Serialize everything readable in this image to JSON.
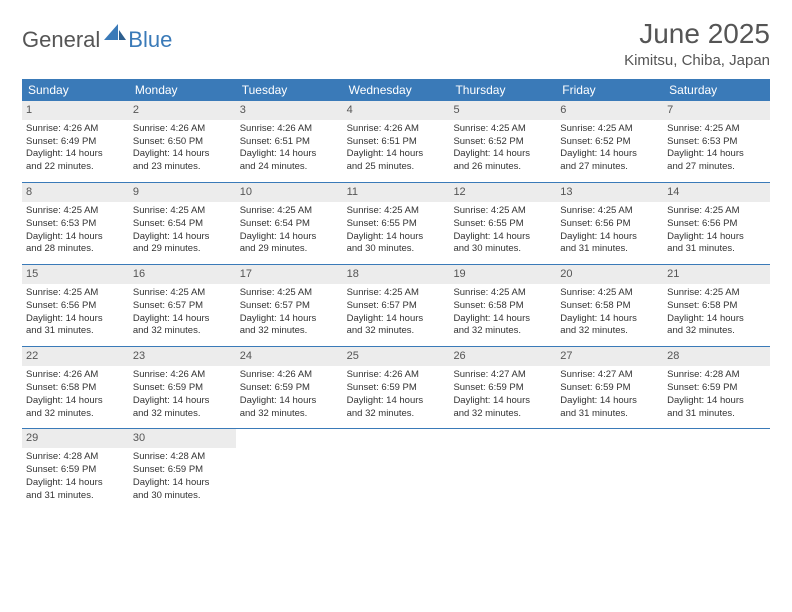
{
  "logo": {
    "general": "General",
    "blue": "Blue"
  },
  "title": "June 2025",
  "location": "Kimitsu, Chiba, Japan",
  "colors": {
    "header_bg": "#3a7ab8",
    "header_text": "#ffffff",
    "daynum_bg": "#ececec",
    "border": "#3a7ab8",
    "text": "#333333",
    "title_color": "#555555"
  },
  "weekdays": [
    "Sunday",
    "Monday",
    "Tuesday",
    "Wednesday",
    "Thursday",
    "Friday",
    "Saturday"
  ],
  "weeks": [
    [
      {
        "n": "1",
        "sunrise": "Sunrise: 4:26 AM",
        "sunset": "Sunset: 6:49 PM",
        "d1": "Daylight: 14 hours",
        "d2": "and 22 minutes."
      },
      {
        "n": "2",
        "sunrise": "Sunrise: 4:26 AM",
        "sunset": "Sunset: 6:50 PM",
        "d1": "Daylight: 14 hours",
        "d2": "and 23 minutes."
      },
      {
        "n": "3",
        "sunrise": "Sunrise: 4:26 AM",
        "sunset": "Sunset: 6:51 PM",
        "d1": "Daylight: 14 hours",
        "d2": "and 24 minutes."
      },
      {
        "n": "4",
        "sunrise": "Sunrise: 4:26 AM",
        "sunset": "Sunset: 6:51 PM",
        "d1": "Daylight: 14 hours",
        "d2": "and 25 minutes."
      },
      {
        "n": "5",
        "sunrise": "Sunrise: 4:25 AM",
        "sunset": "Sunset: 6:52 PM",
        "d1": "Daylight: 14 hours",
        "d2": "and 26 minutes."
      },
      {
        "n": "6",
        "sunrise": "Sunrise: 4:25 AM",
        "sunset": "Sunset: 6:52 PM",
        "d1": "Daylight: 14 hours",
        "d2": "and 27 minutes."
      },
      {
        "n": "7",
        "sunrise": "Sunrise: 4:25 AM",
        "sunset": "Sunset: 6:53 PM",
        "d1": "Daylight: 14 hours",
        "d2": "and 27 minutes."
      }
    ],
    [
      {
        "n": "8",
        "sunrise": "Sunrise: 4:25 AM",
        "sunset": "Sunset: 6:53 PM",
        "d1": "Daylight: 14 hours",
        "d2": "and 28 minutes."
      },
      {
        "n": "9",
        "sunrise": "Sunrise: 4:25 AM",
        "sunset": "Sunset: 6:54 PM",
        "d1": "Daylight: 14 hours",
        "d2": "and 29 minutes."
      },
      {
        "n": "10",
        "sunrise": "Sunrise: 4:25 AM",
        "sunset": "Sunset: 6:54 PM",
        "d1": "Daylight: 14 hours",
        "d2": "and 29 minutes."
      },
      {
        "n": "11",
        "sunrise": "Sunrise: 4:25 AM",
        "sunset": "Sunset: 6:55 PM",
        "d1": "Daylight: 14 hours",
        "d2": "and 30 minutes."
      },
      {
        "n": "12",
        "sunrise": "Sunrise: 4:25 AM",
        "sunset": "Sunset: 6:55 PM",
        "d1": "Daylight: 14 hours",
        "d2": "and 30 minutes."
      },
      {
        "n": "13",
        "sunrise": "Sunrise: 4:25 AM",
        "sunset": "Sunset: 6:56 PM",
        "d1": "Daylight: 14 hours",
        "d2": "and 31 minutes."
      },
      {
        "n": "14",
        "sunrise": "Sunrise: 4:25 AM",
        "sunset": "Sunset: 6:56 PM",
        "d1": "Daylight: 14 hours",
        "d2": "and 31 minutes."
      }
    ],
    [
      {
        "n": "15",
        "sunrise": "Sunrise: 4:25 AM",
        "sunset": "Sunset: 6:56 PM",
        "d1": "Daylight: 14 hours",
        "d2": "and 31 minutes."
      },
      {
        "n": "16",
        "sunrise": "Sunrise: 4:25 AM",
        "sunset": "Sunset: 6:57 PM",
        "d1": "Daylight: 14 hours",
        "d2": "and 32 minutes."
      },
      {
        "n": "17",
        "sunrise": "Sunrise: 4:25 AM",
        "sunset": "Sunset: 6:57 PM",
        "d1": "Daylight: 14 hours",
        "d2": "and 32 minutes."
      },
      {
        "n": "18",
        "sunrise": "Sunrise: 4:25 AM",
        "sunset": "Sunset: 6:57 PM",
        "d1": "Daylight: 14 hours",
        "d2": "and 32 minutes."
      },
      {
        "n": "19",
        "sunrise": "Sunrise: 4:25 AM",
        "sunset": "Sunset: 6:58 PM",
        "d1": "Daylight: 14 hours",
        "d2": "and 32 minutes."
      },
      {
        "n": "20",
        "sunrise": "Sunrise: 4:25 AM",
        "sunset": "Sunset: 6:58 PM",
        "d1": "Daylight: 14 hours",
        "d2": "and 32 minutes."
      },
      {
        "n": "21",
        "sunrise": "Sunrise: 4:25 AM",
        "sunset": "Sunset: 6:58 PM",
        "d1": "Daylight: 14 hours",
        "d2": "and 32 minutes."
      }
    ],
    [
      {
        "n": "22",
        "sunrise": "Sunrise: 4:26 AM",
        "sunset": "Sunset: 6:58 PM",
        "d1": "Daylight: 14 hours",
        "d2": "and 32 minutes."
      },
      {
        "n": "23",
        "sunrise": "Sunrise: 4:26 AM",
        "sunset": "Sunset: 6:59 PM",
        "d1": "Daylight: 14 hours",
        "d2": "and 32 minutes."
      },
      {
        "n": "24",
        "sunrise": "Sunrise: 4:26 AM",
        "sunset": "Sunset: 6:59 PM",
        "d1": "Daylight: 14 hours",
        "d2": "and 32 minutes."
      },
      {
        "n": "25",
        "sunrise": "Sunrise: 4:26 AM",
        "sunset": "Sunset: 6:59 PM",
        "d1": "Daylight: 14 hours",
        "d2": "and 32 minutes."
      },
      {
        "n": "26",
        "sunrise": "Sunrise: 4:27 AM",
        "sunset": "Sunset: 6:59 PM",
        "d1": "Daylight: 14 hours",
        "d2": "and 32 minutes."
      },
      {
        "n": "27",
        "sunrise": "Sunrise: 4:27 AM",
        "sunset": "Sunset: 6:59 PM",
        "d1": "Daylight: 14 hours",
        "d2": "and 31 minutes."
      },
      {
        "n": "28",
        "sunrise": "Sunrise: 4:28 AM",
        "sunset": "Sunset: 6:59 PM",
        "d1": "Daylight: 14 hours",
        "d2": "and 31 minutes."
      }
    ],
    [
      {
        "n": "29",
        "sunrise": "Sunrise: 4:28 AM",
        "sunset": "Sunset: 6:59 PM",
        "d1": "Daylight: 14 hours",
        "d2": "and 31 minutes."
      },
      {
        "n": "30",
        "sunrise": "Sunrise: 4:28 AM",
        "sunset": "Sunset: 6:59 PM",
        "d1": "Daylight: 14 hours",
        "d2": "and 30 minutes."
      },
      {
        "empty": true
      },
      {
        "empty": true
      },
      {
        "empty": true
      },
      {
        "empty": true
      },
      {
        "empty": true
      }
    ]
  ]
}
